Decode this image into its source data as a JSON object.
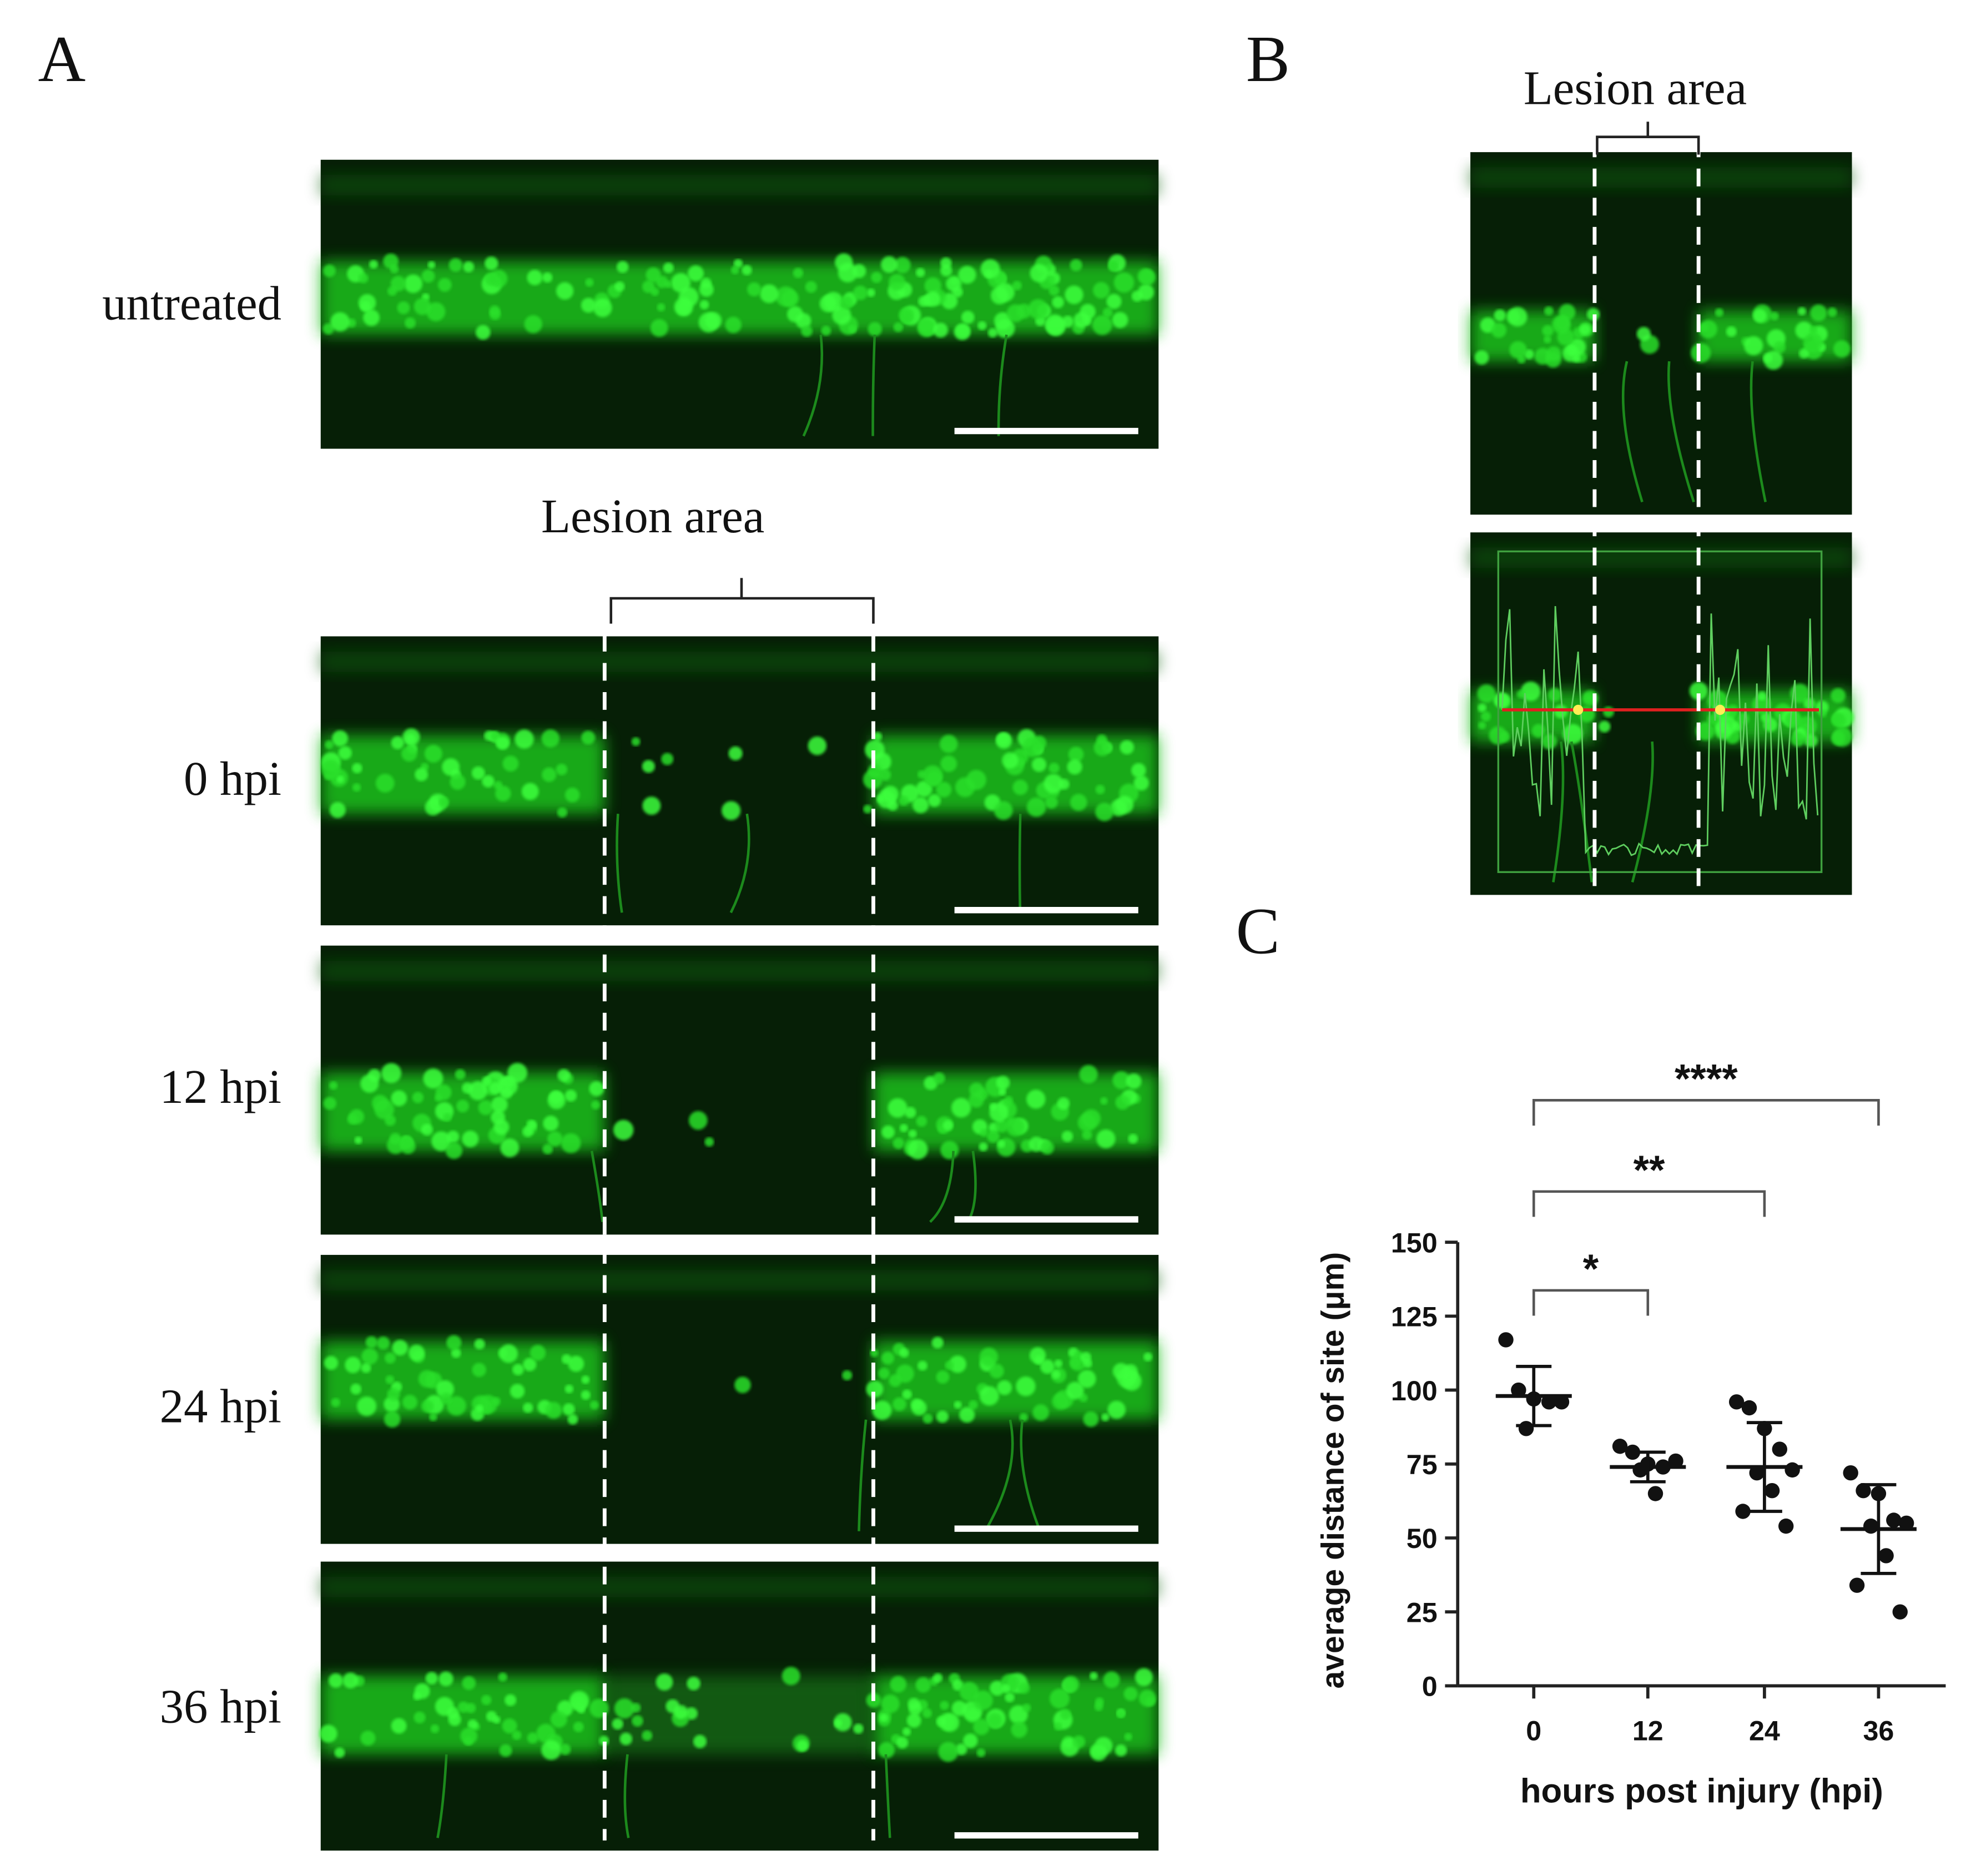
{
  "panel_labels": [
    "A",
    "B",
    "C"
  ],
  "panel_a": {
    "rows": [
      "untreated",
      "0 hpi",
      "12 hpi",
      "24 hpi",
      "36 hpi"
    ],
    "lesion_label": "Lesion area"
  },
  "panel_b": {
    "lesion_label": "Lesion area"
  },
  "chart_data": {
    "type": "dot",
    "x_label": "hours post injury (hpi)",
    "y_label": "average distance of site (μm)",
    "categories": [
      "0",
      "12",
      "24",
      "36"
    ],
    "values": [
      [
        117,
        100,
        97,
        96,
        96,
        87
      ],
      [
        81,
        79,
        75,
        74,
        76,
        73,
        65
      ],
      [
        96,
        94,
        87,
        80,
        73,
        72,
        66,
        59,
        54
      ],
      [
        72,
        66,
        65,
        56,
        55,
        54,
        44,
        34,
        25
      ]
    ],
    "means": [
      98,
      74,
      74,
      53
    ],
    "errors": [
      10,
      5,
      15,
      15
    ],
    "color": "#111111",
    "ylim": [
      0,
      150
    ],
    "yticks": [
      0,
      25,
      50,
      75,
      100,
      125,
      150
    ],
    "annotations": [
      {
        "label": "*",
        "pair": [
          0,
          1
        ]
      },
      {
        "label": "**",
        "pair": [
          0,
          2
        ]
      },
      {
        "label": "****",
        "pair": [
          0,
          3
        ]
      }
    ]
  }
}
